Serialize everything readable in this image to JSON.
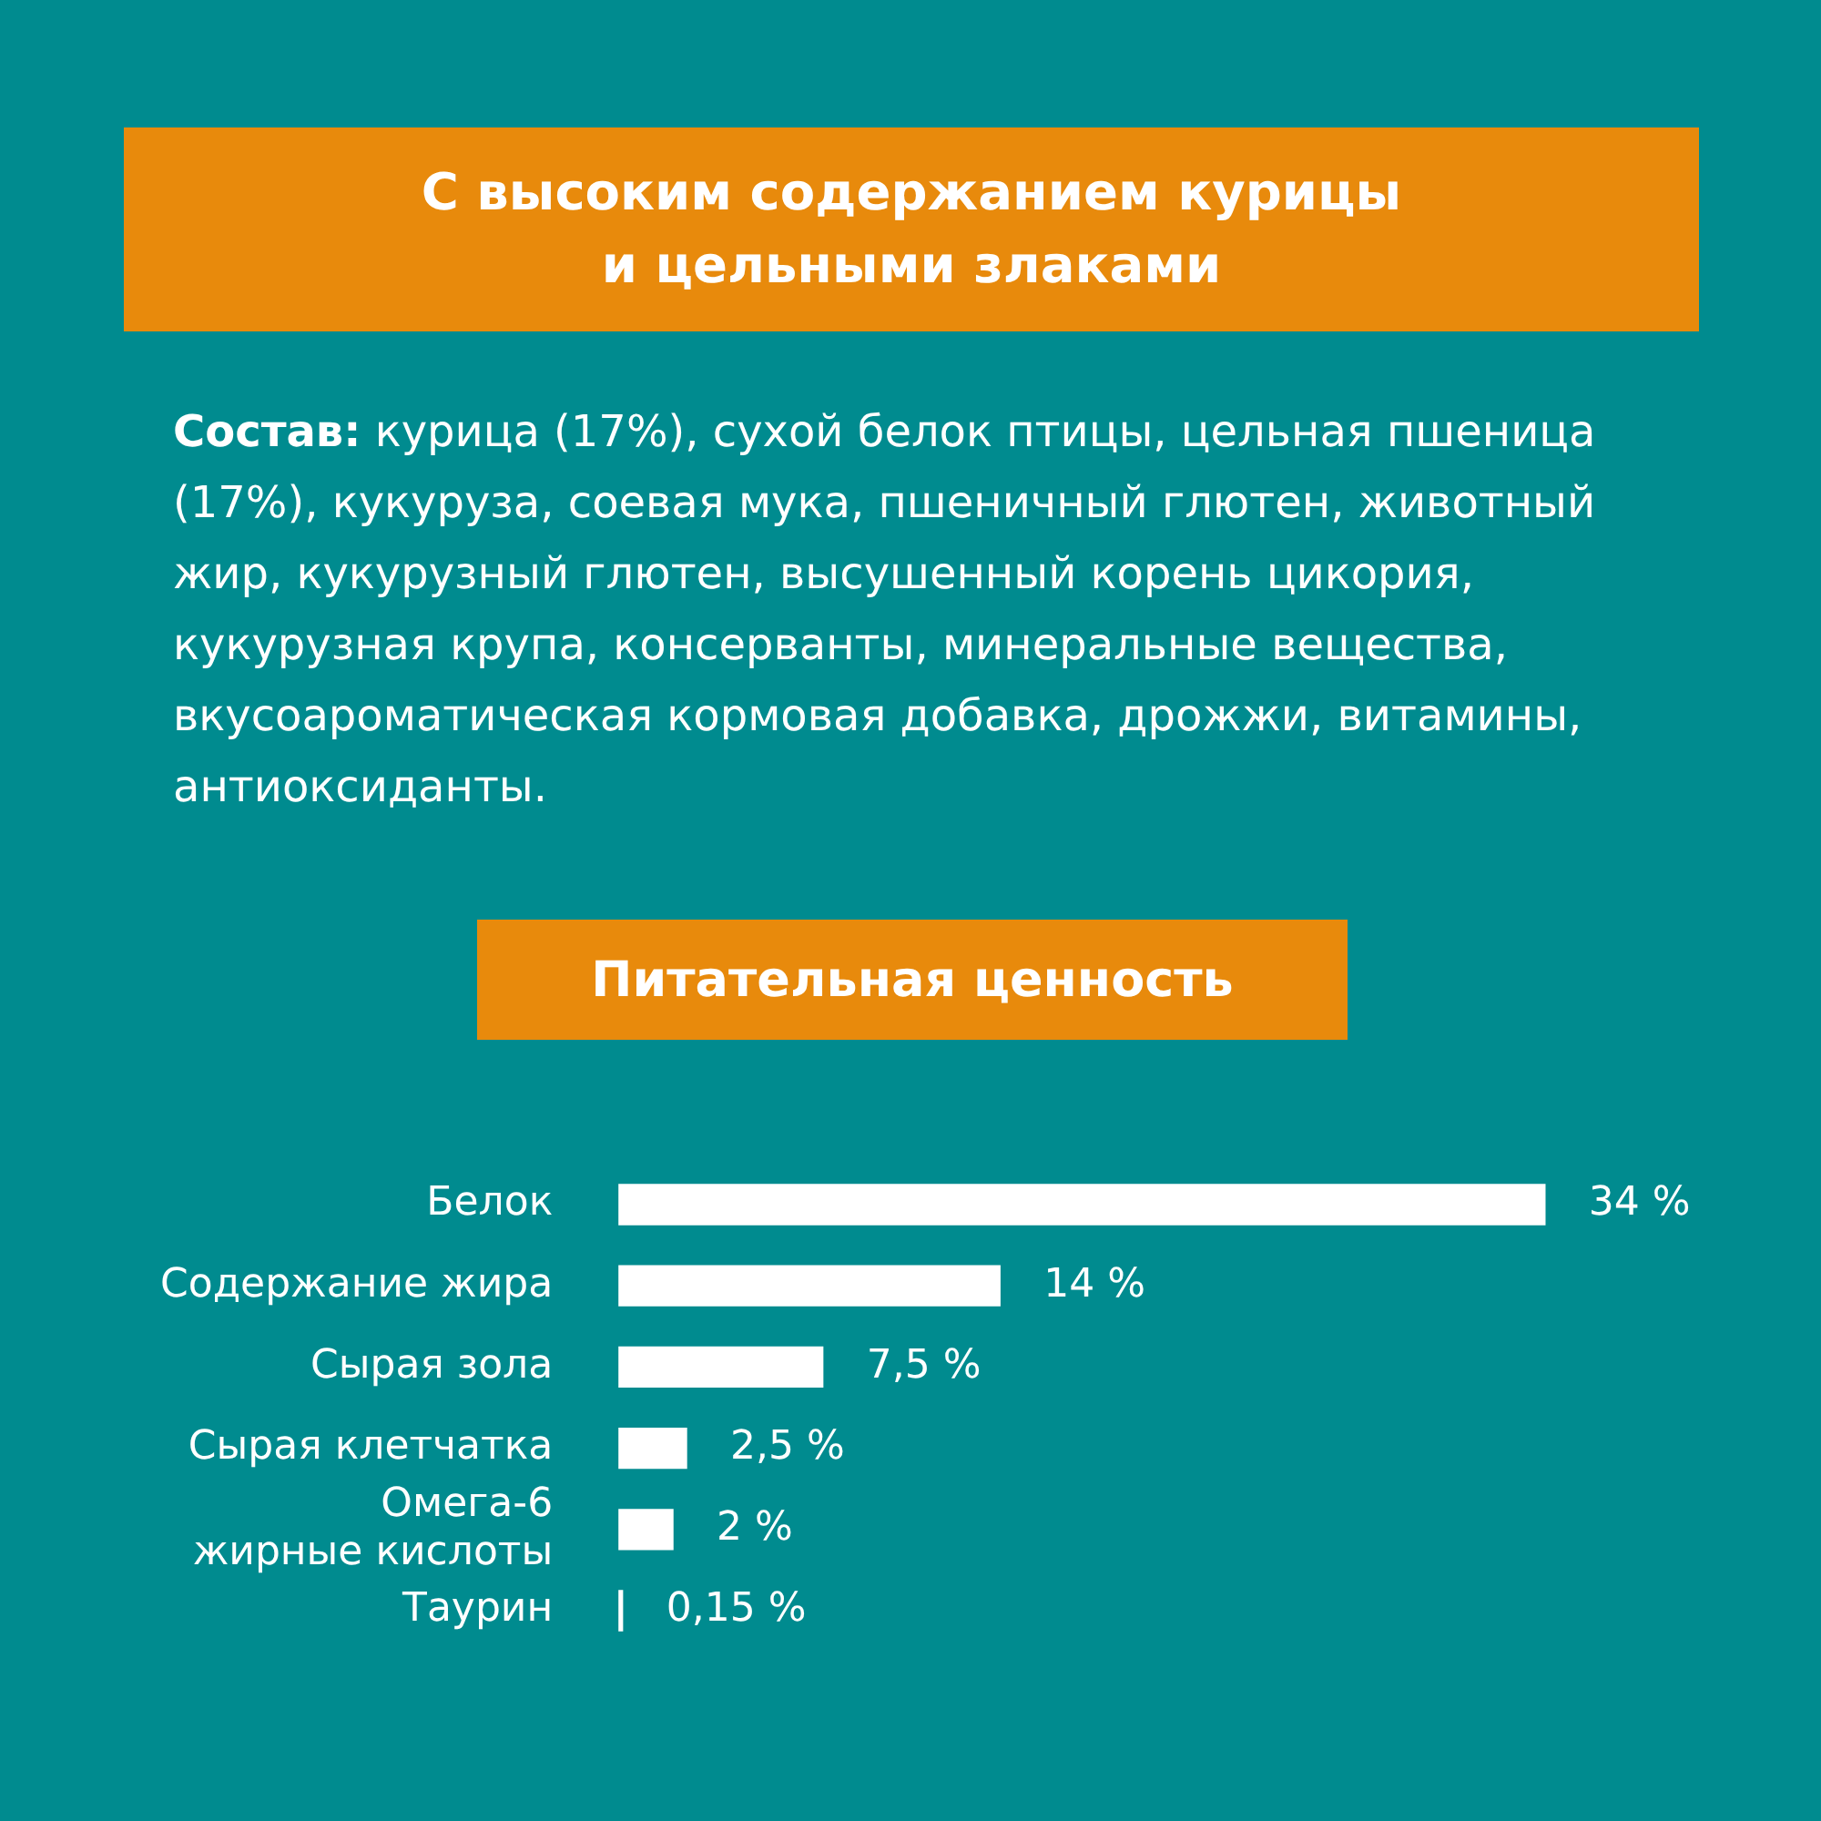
{
  "chart_data": {
    "type": "bar",
    "orientation": "horizontal",
    "title": "С высоким содержанием курицы и цельными злаками",
    "subtitle": "Питательная ценность",
    "annotations": [
      "Состав: курица (17%), сухой белок птицы, цельная пшеница (17%), кукуруза, соевая мука, пшеничный глютен, животный жир, кукурузный глютен, высушенный корень цикория, кукурузная крупа, консерванты, минеральные вещества, вкусоароматическая кормовая добавка, дрожжи, витамины, антиоксиданты."
    ],
    "categories": [
      "Белок",
      "Содержание жира",
      "Сырая зола",
      "Сырая клетчатка",
      "Омега-6 жирные кислоты",
      "Таурин"
    ],
    "values": [
      34,
      14,
      7.5,
      2.5,
      2,
      0.15
    ],
    "value_labels": [
      "34 %",
      "14 %",
      "7,5 %",
      "2,5 %",
      "2 %",
      "0,15 %"
    ],
    "color": "#ffffff",
    "tick_labels": "y",
    "legend": false
  }
}
